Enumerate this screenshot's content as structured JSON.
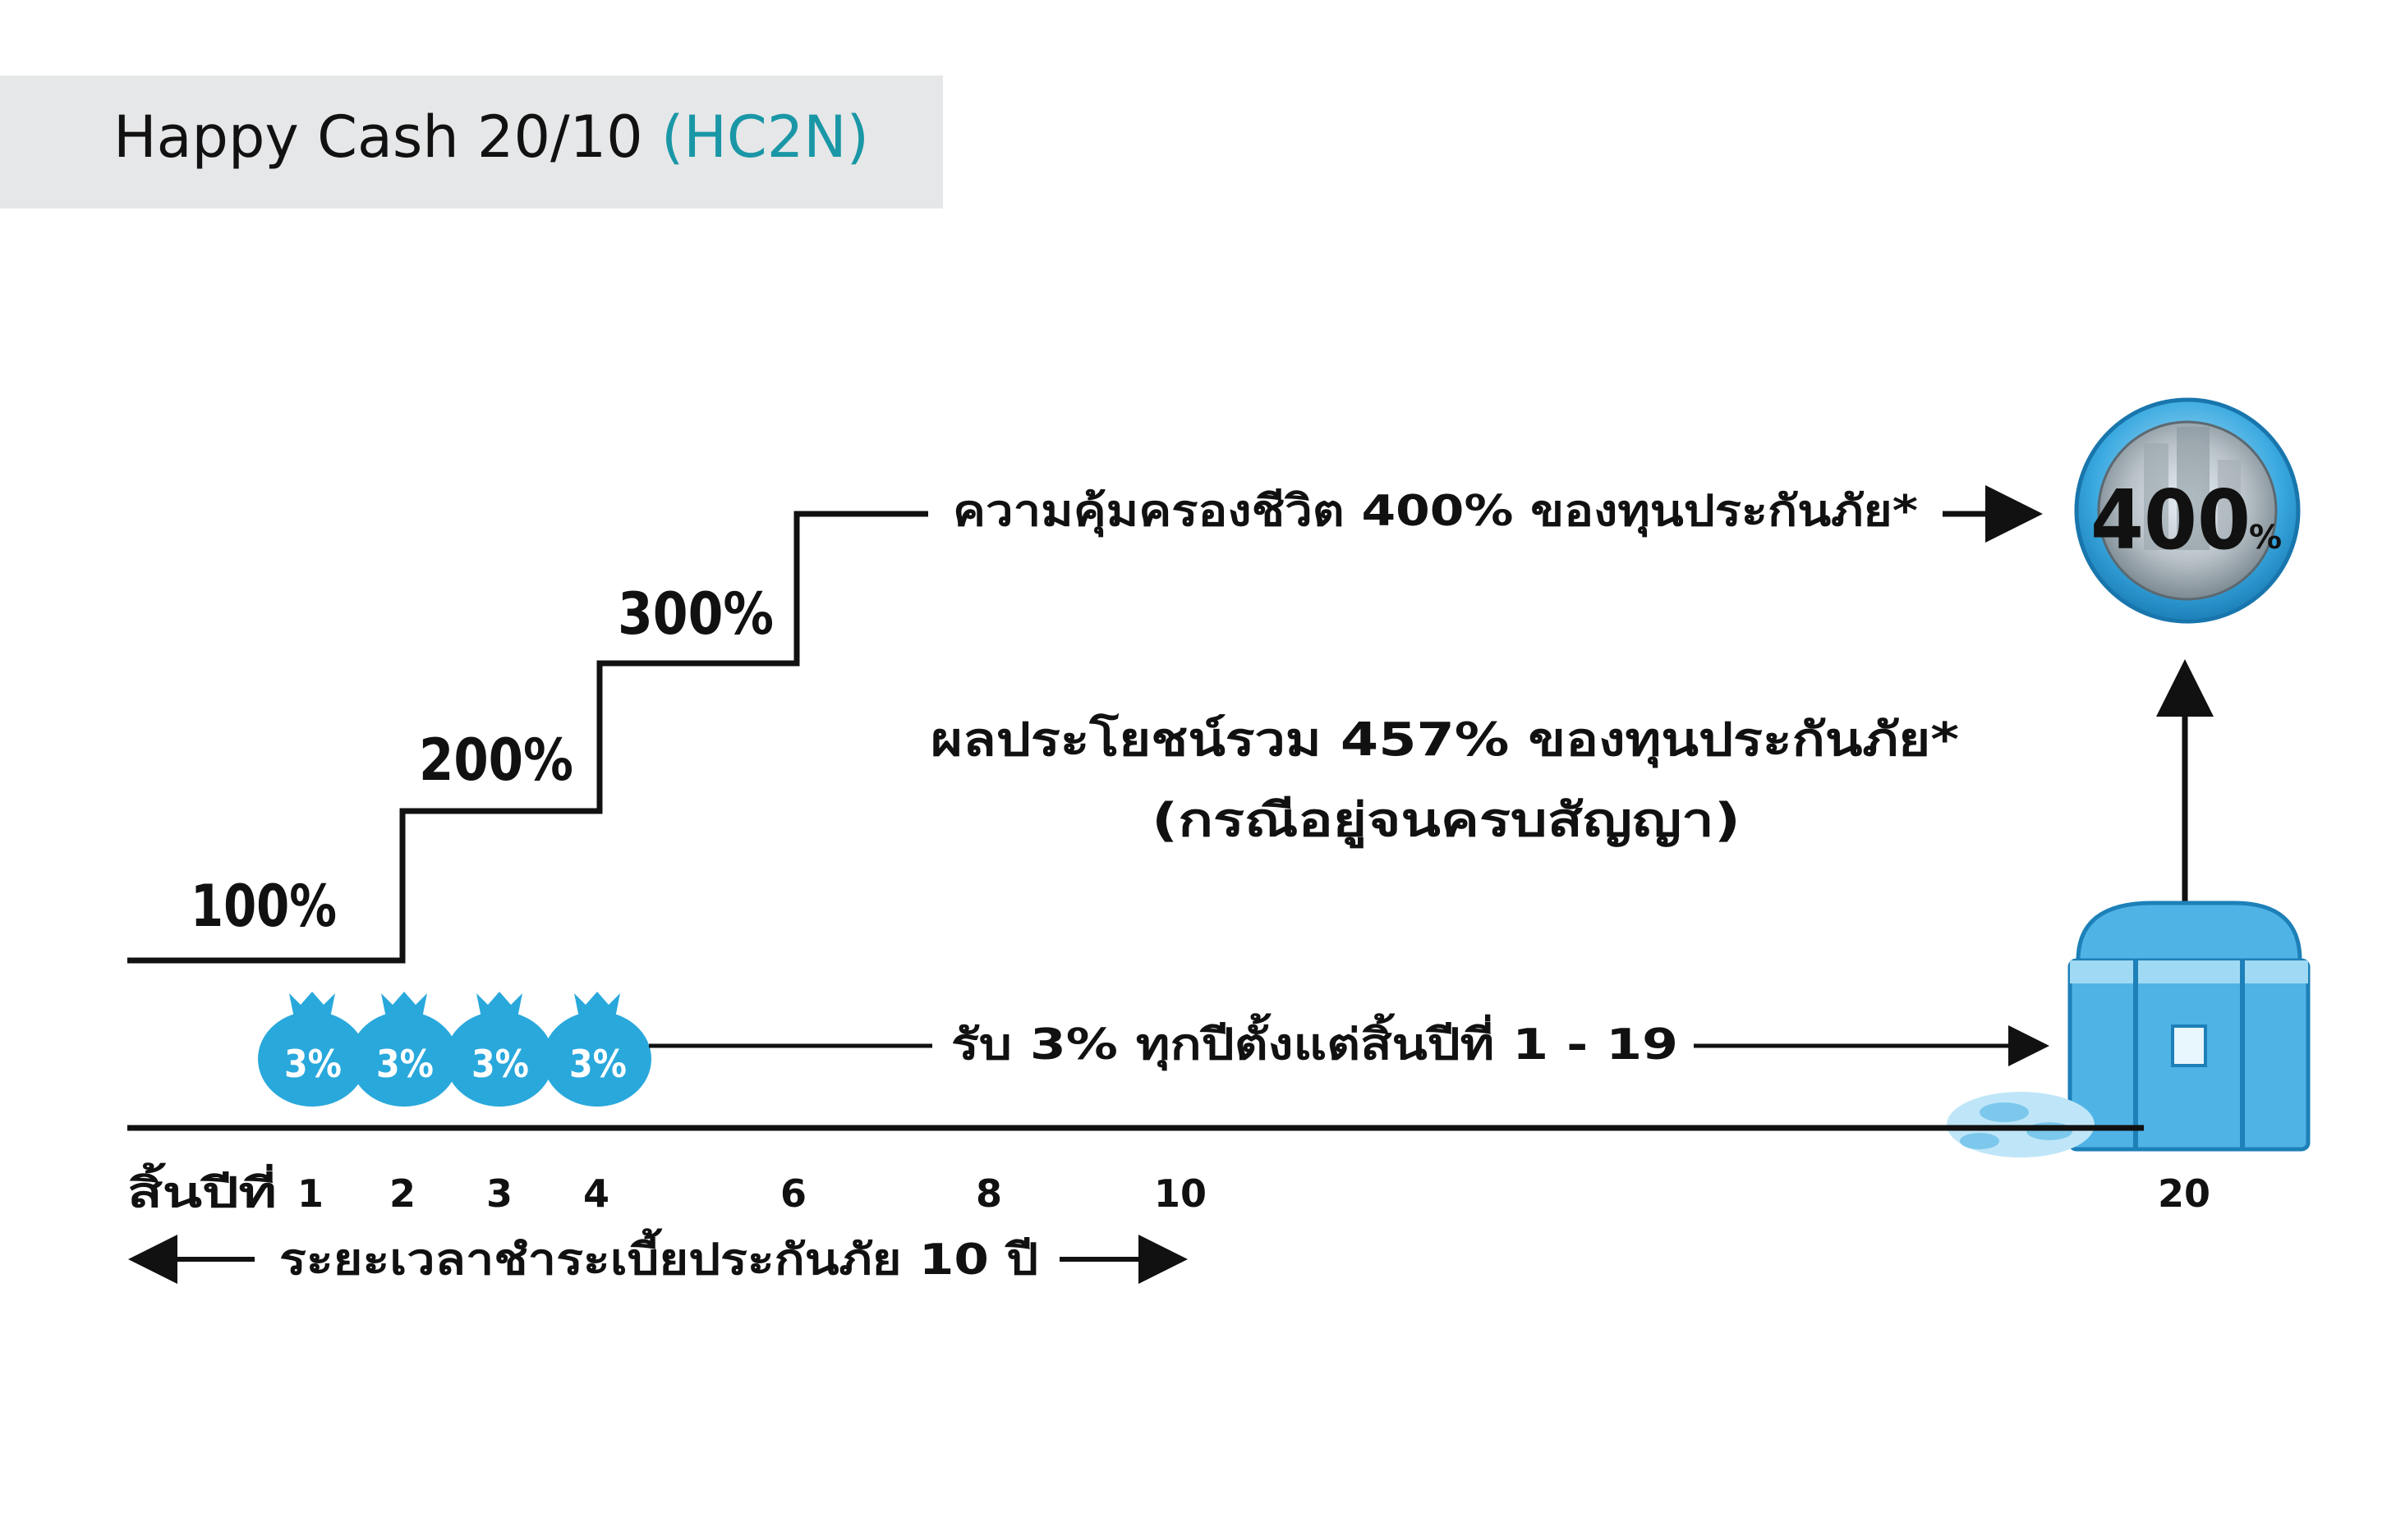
{
  "header": {
    "title": "Happy  Cash 20/10",
    "code": "(HC2N)"
  },
  "coverage_steps": [
    {
      "label": "100%",
      "from_year": 0,
      "to_year": 2
    },
    {
      "label": "200%",
      "from_year": 2,
      "to_year": 4
    },
    {
      "label": "300%",
      "from_year": 4,
      "to_year": 6
    },
    {
      "label": "400%",
      "from_year": 6,
      "to_year": 20
    }
  ],
  "life_coverage_text": "ความคุ้มครองชีวิต 400% ของทุนประกันภัย*",
  "total_benefit_text": "ผลประโยชน์รวม 457% ของทุนประกันภัย*",
  "total_benefit_note": "(กรณีอยู่จนครบสัญญา)",
  "cashback_text": "รับ 3% ทุกปีตั้งแต่สิ้นปีที่ 1 - 19",
  "money_bags": [
    {
      "label": "3%",
      "year": 1
    },
    {
      "label": "3%",
      "year": 2
    },
    {
      "label": "3%",
      "year": 3
    },
    {
      "label": "3%",
      "year": 4
    }
  ],
  "coin_value": "400",
  "coin_unit": "%",
  "timeline": {
    "prefix": "สิ้นปีที่",
    "ticks": [
      "1",
      "2",
      "3",
      "4",
      "6",
      "8",
      "10",
      "20"
    ],
    "premium_period_text": "ระยะเวลาชำระเบี้ยประกันภัย 10 ปี"
  },
  "colors": {
    "accent_teal": "#1a97a6",
    "bag_blue": "#29a8dc",
    "chest_blue": "#4fb3e6",
    "banner_gray": "#e6e7e8"
  },
  "icons": [
    "money-bag-icon",
    "treasure-chest-icon",
    "coin-badge-icon",
    "arrow-right-icon",
    "arrow-left-icon",
    "arrow-up-icon"
  ]
}
